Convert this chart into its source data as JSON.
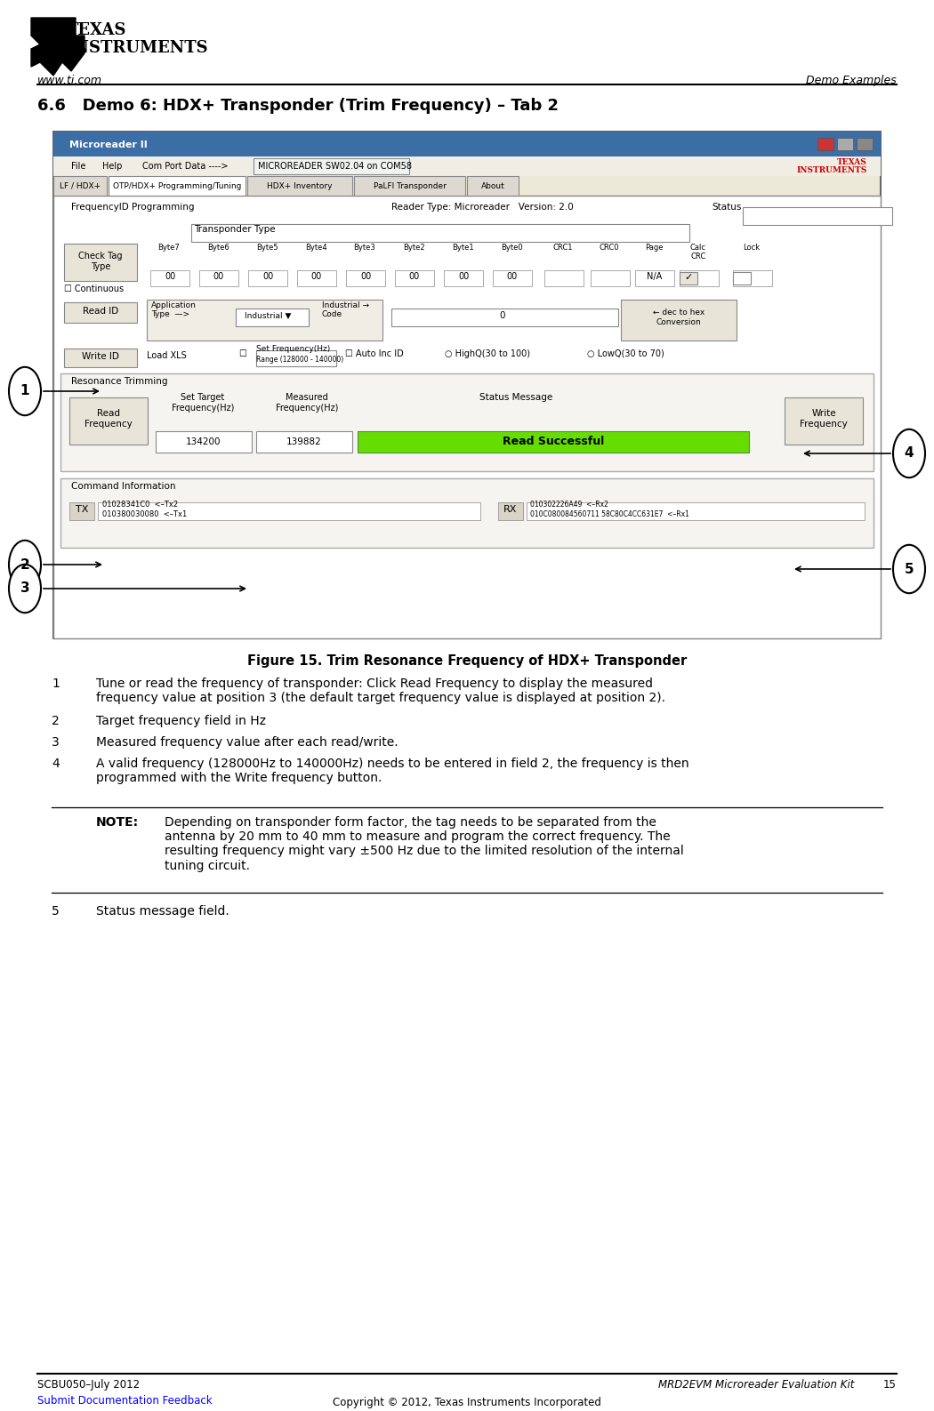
{
  "page_bg": "#ffffff",
  "header_left": "www.ti.com",
  "header_right": "Demo Examples",
  "section_title": "6.6   Demo 6: HDX+ Transponder (Trim Frequency) – Tab 2",
  "figure_caption": "Figure 15. Trim Resonance Frequency of HDX+ Transponder",
  "footer_left_line1": "SCBU050–July 2012",
  "footer_left_line2": "Submit Documentation Feedback",
  "footer_center": "Copyright © 2012, Texas Instruments Incorporated",
  "footer_right_italic": "MRD2EVM Microreader Evaluation Kit",
  "footer_page": "15",
  "numbered_items": [
    {
      "num": "1",
      "text": "Tune or read the frequency of transponder: Click Read Frequency to display the measured\nfrequency value at position 3 (the default target frequency value is displayed at position 2).",
      "lines": 2
    },
    {
      "num": "2",
      "text": "Target frequency field in Hz",
      "lines": 1
    },
    {
      "num": "3",
      "text": "Measured frequency value after each read/write.",
      "lines": 1
    },
    {
      "num": "4",
      "text": "A valid frequency (128000Hz to 140000Hz) needs to be entered in field 2, the frequency is then\nprogrammed with the Write frequency button.",
      "lines": 2
    }
  ],
  "note_label": "NOTE:",
  "note_text": "Depending on transponder form factor, the tag needs to be separated from the\nantenna by 20 mm to 40 mm to measure and program the correct frequency. The\nresulting frequency might vary ±500 Hz due to the limited resolution of the internal\ntuning circuit.",
  "item5_num": "5",
  "item5_text": "Status message field.",
  "green_bar_color": "#66dd00",
  "read_successful_text": "Read Successful",
  "title_bar_color": "#3a6ea5",
  "screenshot_title": "Microreader II",
  "tab_active_color": "#ffffff",
  "tab_inactive_color": "#ddd9d0",
  "win_bg": "#ece9d8",
  "content_bg": "#f0eeea"
}
